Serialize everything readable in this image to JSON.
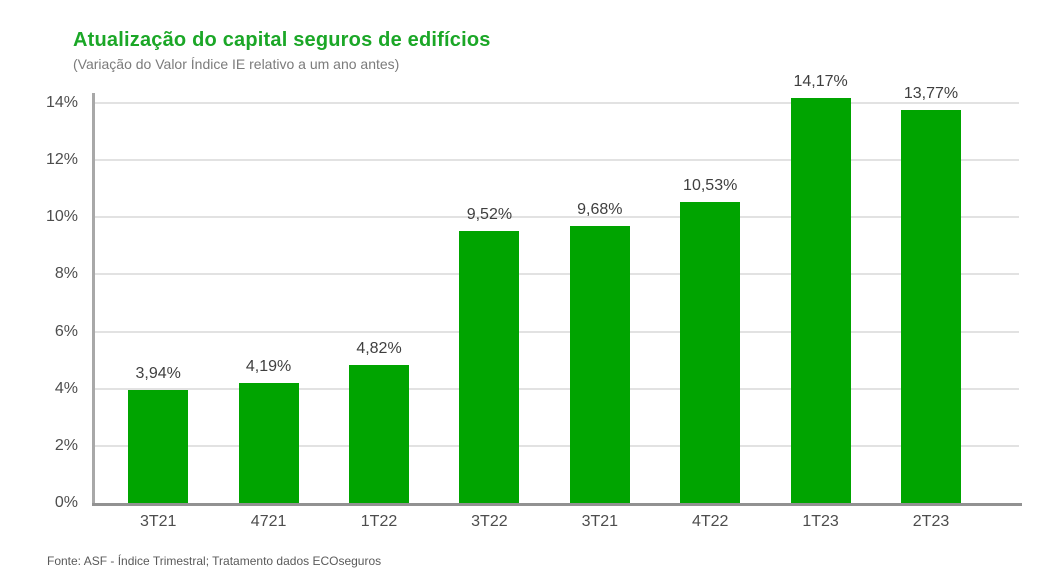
{
  "chart_data": {
    "type": "bar",
    "title": "Atualização do capital seguros de edifícios",
    "subtitle": "(Variação do Valor Índice IE relativo a um ano antes)",
    "source": "Fonte: ASF - Índice Trimestral; Tratamento dados ECOseguros",
    "categories": [
      "3T21",
      "4721",
      "1T22",
      "3T22",
      "3T21",
      "4T22",
      "1T23",
      "2T23"
    ],
    "values": [
      3.94,
      4.19,
      4.82,
      9.52,
      9.68,
      10.53,
      14.17,
      13.77
    ],
    "value_labels": [
      "3,94%",
      "4,19%",
      "4,82%",
      "9,52%",
      "9,68%",
      "10,53%",
      "14,17%",
      "13,77%"
    ],
    "xlabel": "",
    "ylabel": "",
    "ylim": [
      0,
      14
    ],
    "y_tick_step": 2,
    "y_tick_labels": [
      "0%",
      "2%",
      "4%",
      "6%",
      "8%",
      "10%",
      "12%",
      "14%"
    ],
    "grid": "horizontal",
    "legend": "none",
    "colors": {
      "bar": "#00a400",
      "title": "#1ba727",
      "subtitle": "#7b7b7b",
      "gridline": "#e2e2e2",
      "y_axis_line": "#a8a8a8",
      "x_axis_line": "#929292",
      "tick_text": "#4d4d4d",
      "value_label_text": "#3f3f3f",
      "source_text": "#5a5a5a"
    }
  }
}
